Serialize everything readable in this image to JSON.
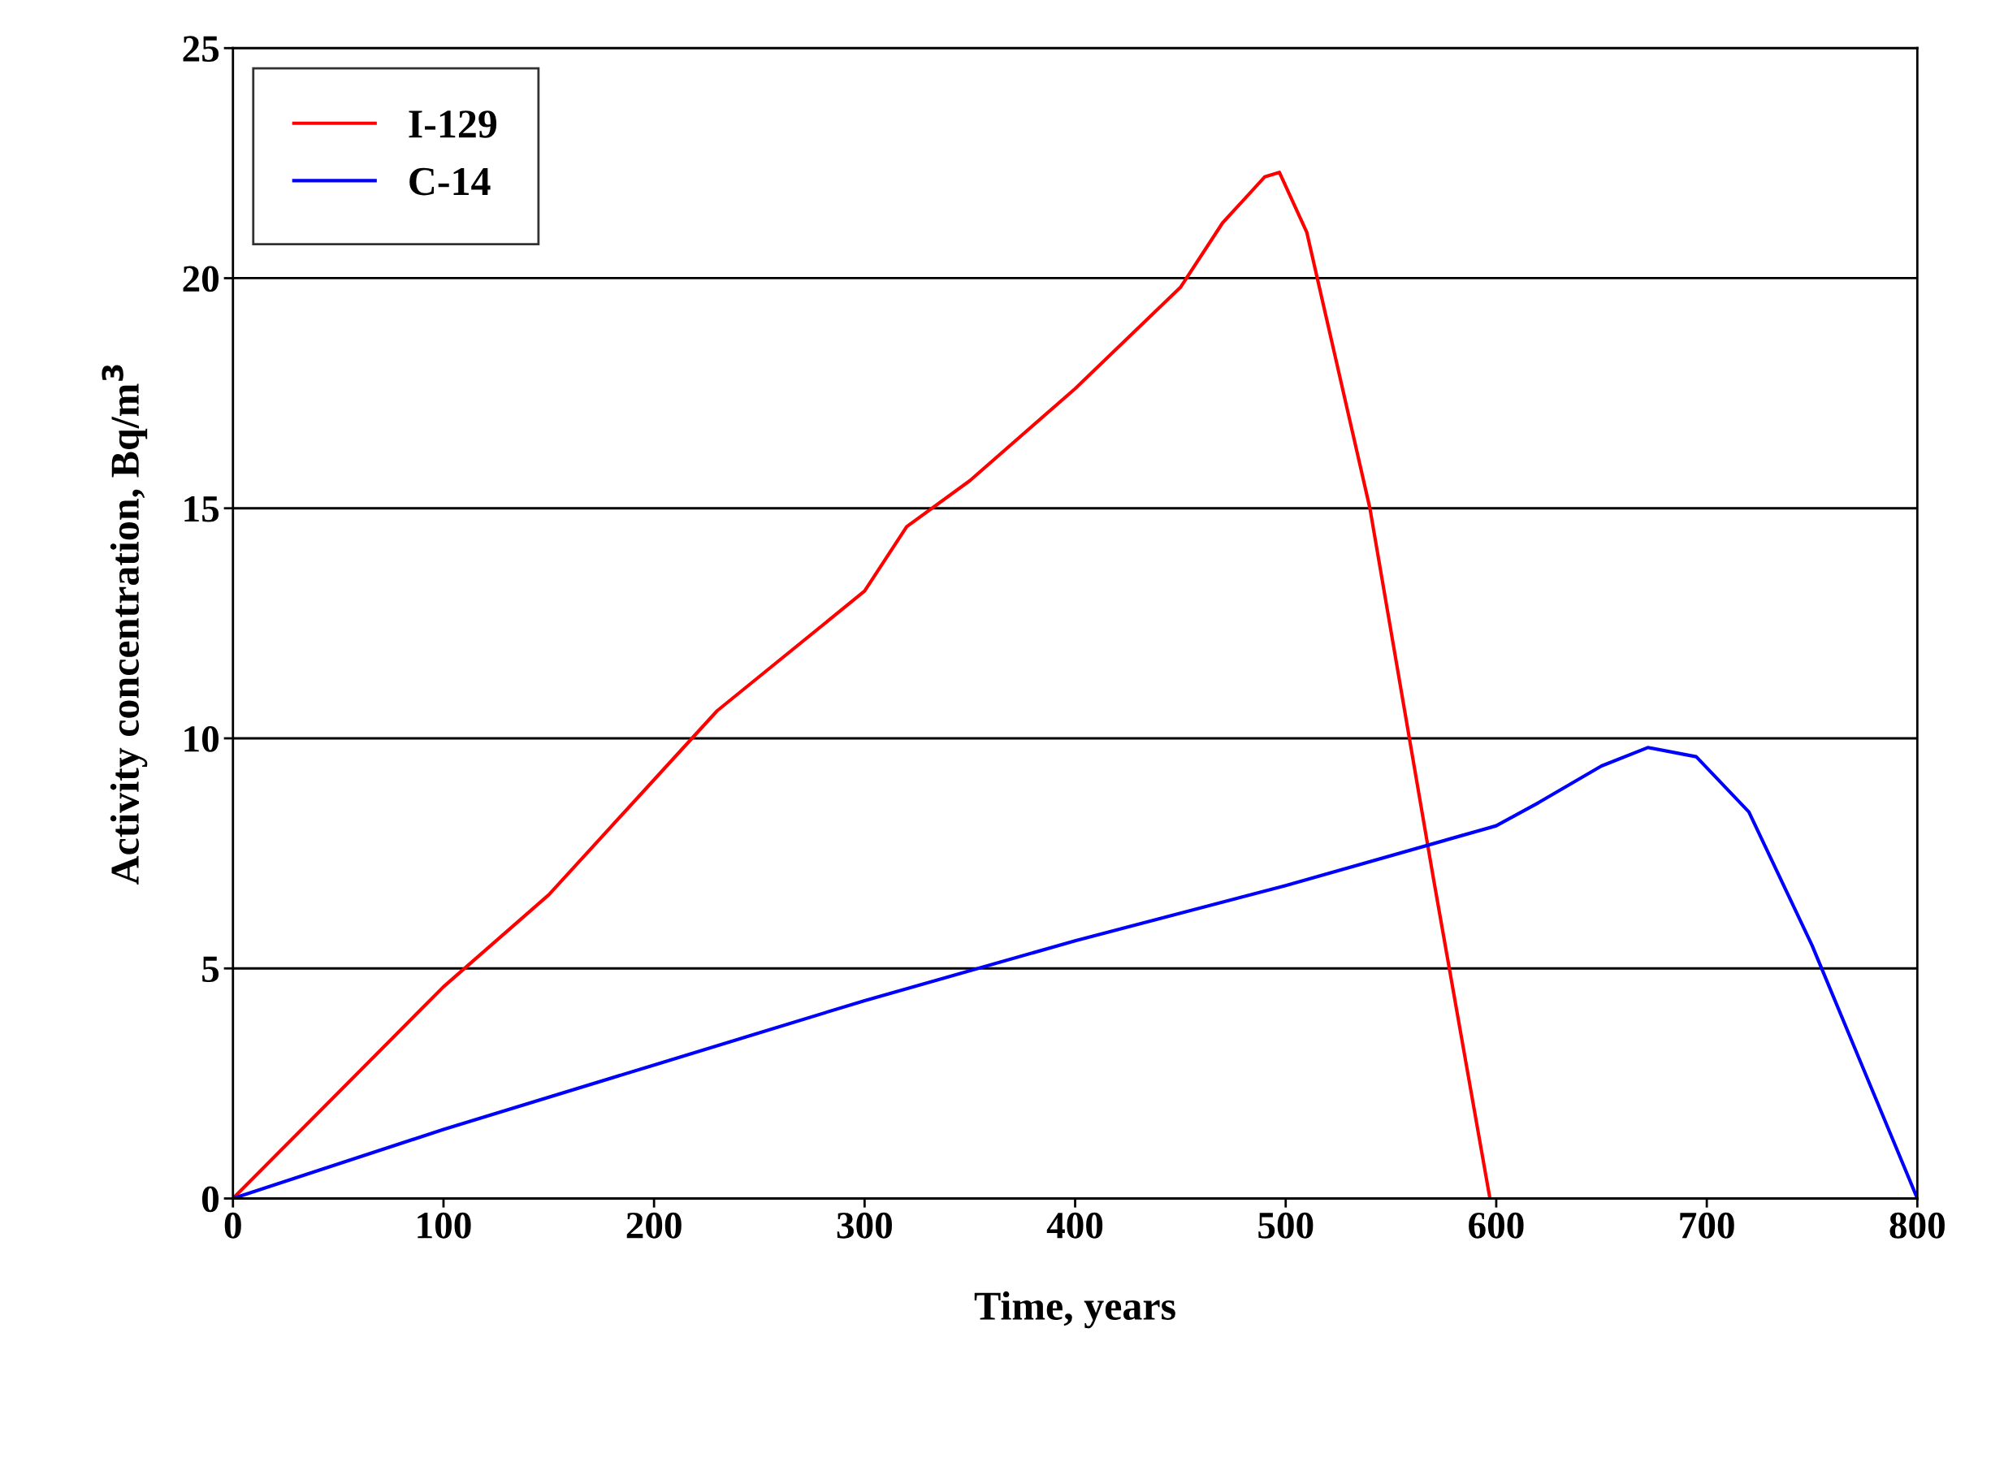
{
  "chart_data": {
    "type": "line",
    "xlabel": "Time, years",
    "ylabel": "Activity concentration, Bq/m$^{3}$",
    "xlim": [
      0,
      800
    ],
    "xticks": [
      0,
      100,
      200,
      300,
      400,
      500,
      600,
      700,
      800
    ],
    "ylim": [
      0,
      25
    ],
    "yticks": [
      0,
      5,
      10,
      15,
      20,
      25
    ],
    "grid": "y",
    "legend": "top left",
    "marker": "none",
    "line_style": "solid",
    "series": [
      {
        "name": "I-129",
        "color": "#ff0000",
        "x": [
          0,
          50,
          100,
          150,
          200,
          230,
          300,
          320,
          350,
          400,
          450,
          470,
          490,
          497,
          510,
          540,
          570,
          597
        ],
        "values": [
          0,
          2.3,
          4.6,
          6.6,
          9.1,
          10.6,
          13.2,
          14.6,
          15.6,
          17.6,
          19.8,
          21.2,
          22.2,
          22.3,
          21,
          15,
          7,
          0
        ]
      },
      {
        "name": "C-14",
        "color": "#0000ff",
        "x": [
          0,
          100,
          200,
          300,
          400,
          500,
          600,
          620,
          650,
          672,
          695,
          720,
          750,
          800
        ],
        "values": [
          0,
          1.5,
          2.9,
          4.3,
          5.6,
          6.8,
          8.1,
          8.6,
          9.4,
          9.8,
          9.6,
          8.4,
          5.5,
          0
        ]
      }
    ]
  }
}
